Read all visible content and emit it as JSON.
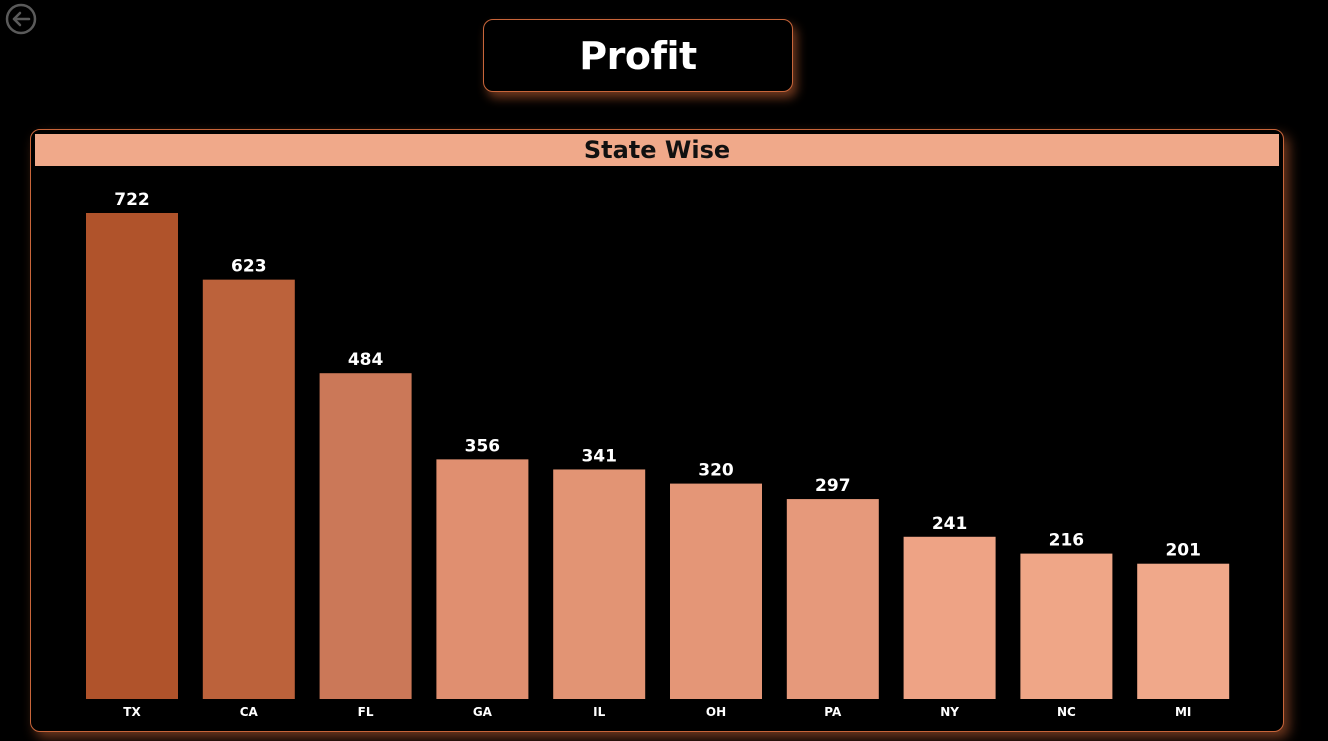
{
  "page_title": "Profit",
  "back_button_icon": "arrow-left-circle-icon",
  "chart_data": {
    "type": "bar",
    "title": "State Wise",
    "categories": [
      "TX",
      "CA",
      "FL",
      "GA",
      "IL",
      "OH",
      "PA",
      "NY",
      "NC",
      "MI"
    ],
    "values": [
      722,
      623,
      484,
      356,
      341,
      320,
      297,
      241,
      216,
      201
    ],
    "colors": [
      "#b0532b",
      "#bc623b",
      "#cb7858",
      "#e08f70",
      "#e29474",
      "#e49677",
      "#e6997b",
      "#eea385",
      "#efa687",
      "#f0a88a"
    ],
    "ylim": [
      0,
      722
    ],
    "xlabel": "",
    "ylabel": "",
    "grid": false,
    "legend": "none"
  },
  "colors": {
    "background": "#000000",
    "accent_border": "#c8653a",
    "header_fill": "#f0a98a",
    "label_text": "#ffffff"
  }
}
